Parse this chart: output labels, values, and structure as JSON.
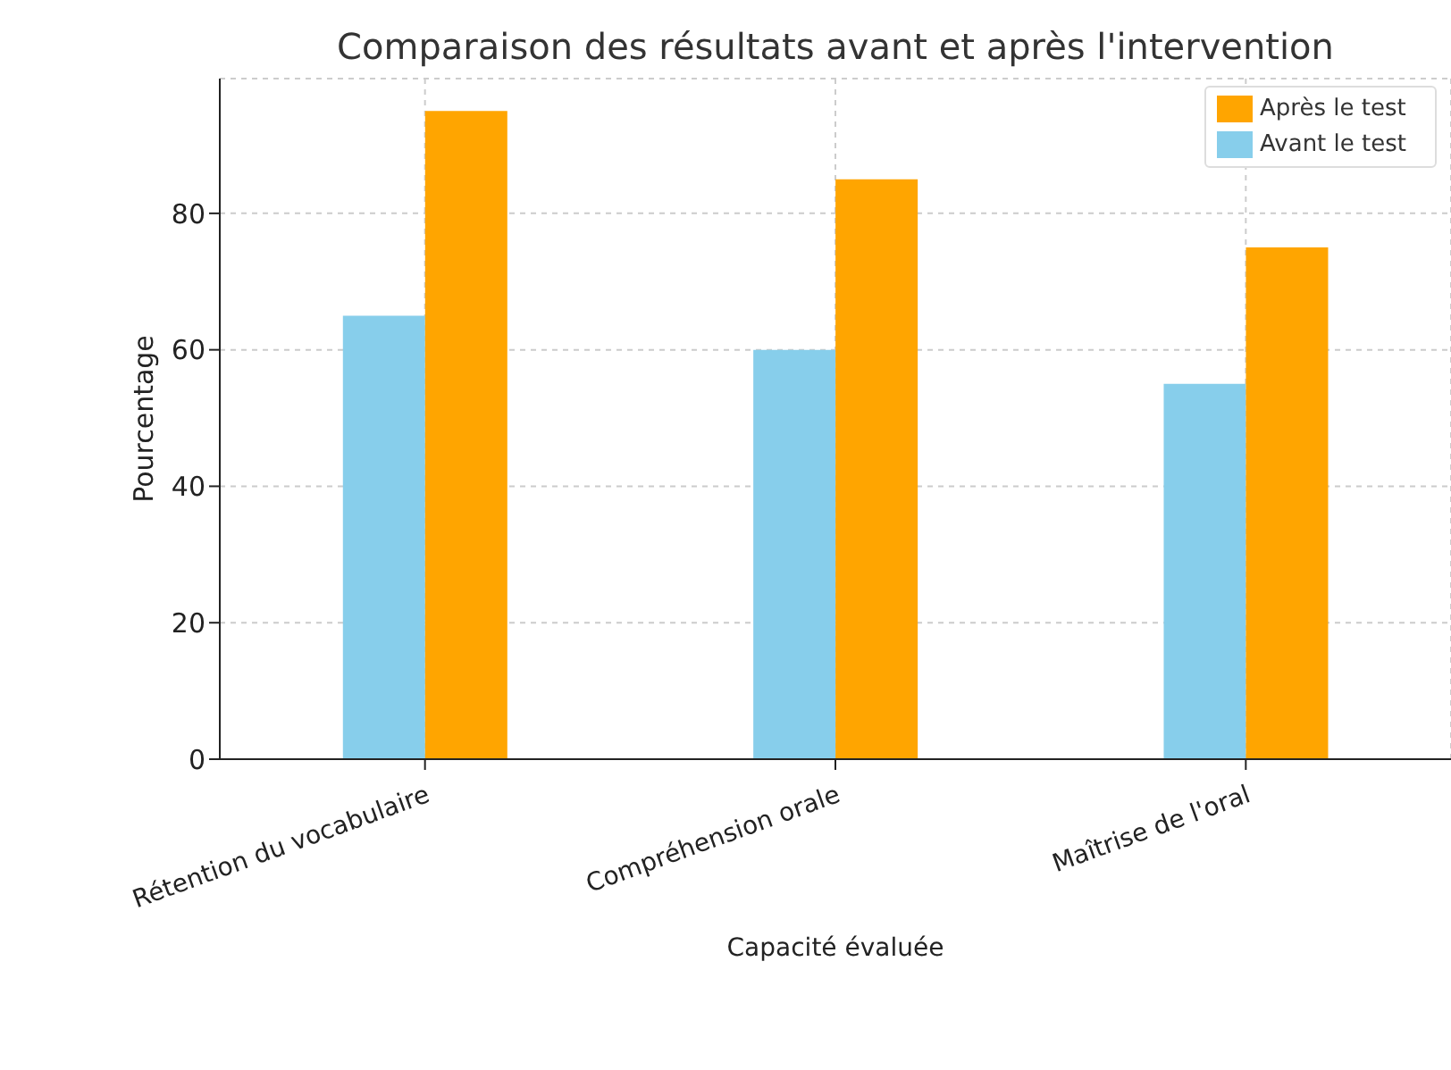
{
  "chart_data": {
    "type": "bar",
    "title": "Comparaison des résultats avant et après l'intervention",
    "xlabel": "Capacité évaluée",
    "ylabel": "Pourcentage",
    "categories": [
      "Rétention du vocabulaire",
      "Compréhension orale",
      "Maîtrise de l'oral"
    ],
    "series": [
      {
        "name": "Avant le test",
        "color": "#87ceeb",
        "values": [
          65,
          60,
          55
        ]
      },
      {
        "name": "Après le test",
        "color": "#ffa500",
        "values": [
          95,
          85,
          75
        ]
      }
    ],
    "ylim": [
      0,
      99.75
    ],
    "yticks": [
      0,
      20,
      40,
      60,
      80
    ],
    "grid": true,
    "legend": "top right"
  }
}
